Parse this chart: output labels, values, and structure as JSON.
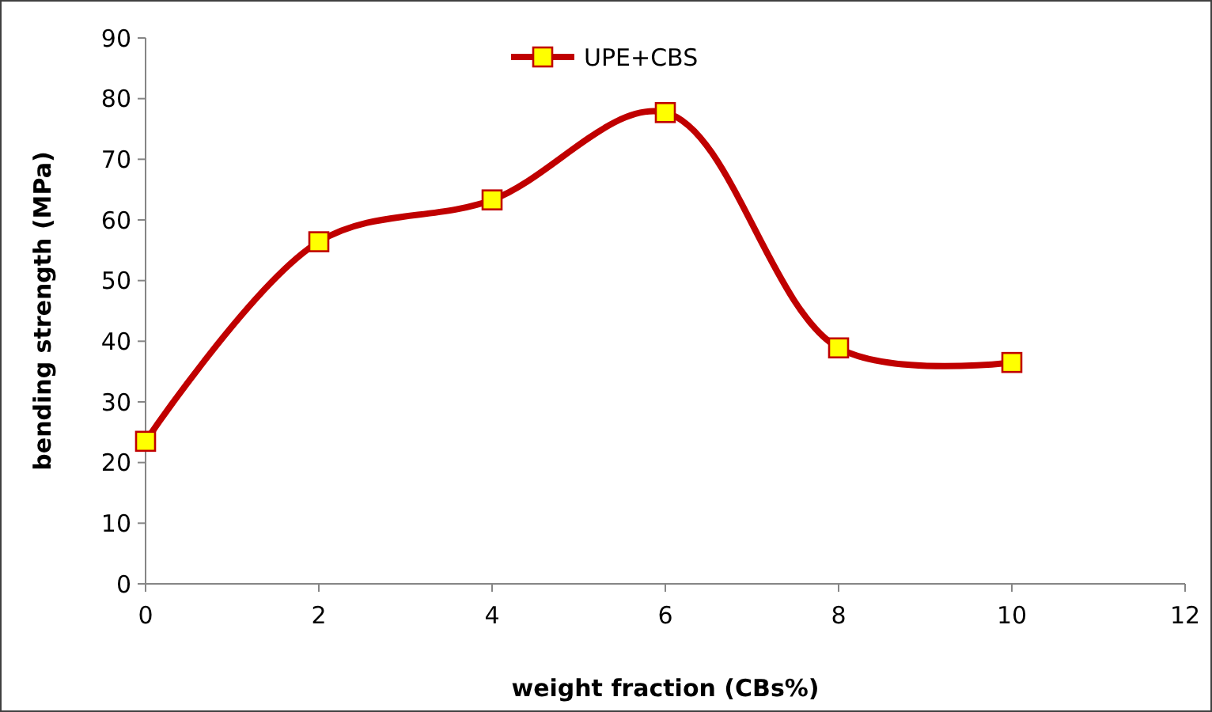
{
  "chart_data": {
    "type": "line",
    "xlabel": "weight fraction  (CBs%)",
    "ylabel": "bending strength (MPa)",
    "x": [
      0,
      2,
      4,
      6,
      8,
      10
    ],
    "series": [
      {
        "name": "UPE+CBS",
        "color": "#c00000",
        "values": [
          23.5,
          56.4,
          63.3,
          77.7,
          38.9,
          36.5
        ]
      }
    ],
    "xlim": [
      0,
      12
    ],
    "xticks": [
      0,
      2,
      4,
      6,
      8,
      10,
      12
    ],
    "ylim": [
      0,
      90
    ],
    "yticks": [
      0,
      10,
      20,
      30,
      40,
      50,
      60,
      70,
      80,
      90
    ],
    "marker": "square",
    "line_style": "solid",
    "grid": false,
    "legend": "top"
  }
}
